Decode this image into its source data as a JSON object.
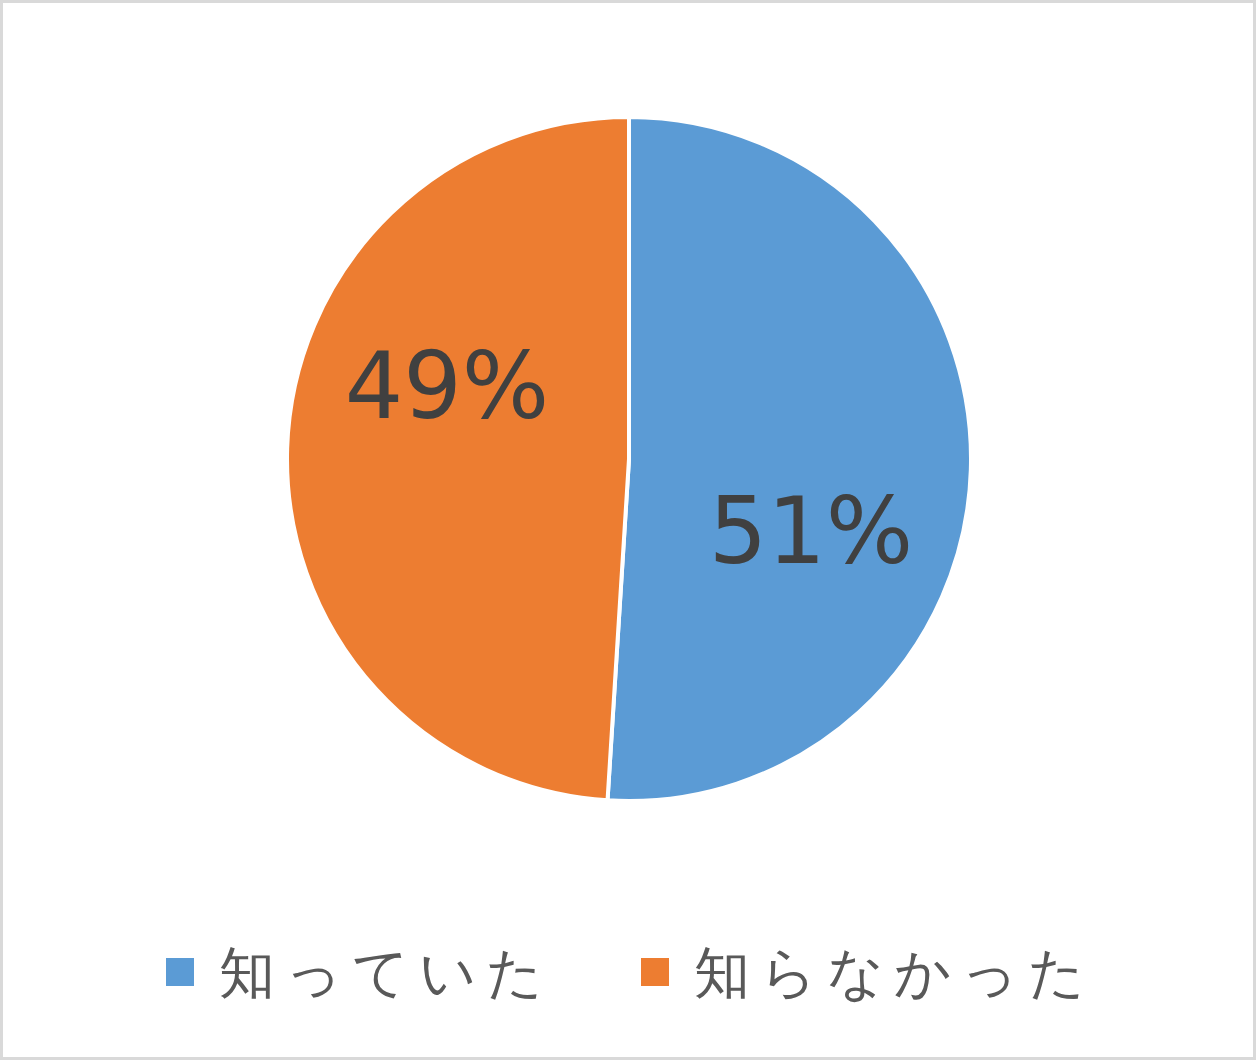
{
  "chart_data": {
    "type": "pie",
    "categories": [
      "知っていた",
      "知らなかった"
    ],
    "values": [
      51,
      49
    ],
    "colors": [
      "#5b9bd5",
      "#ed7d31"
    ],
    "value_labels": [
      "51%",
      "49%"
    ],
    "legend": "bottom"
  }
}
